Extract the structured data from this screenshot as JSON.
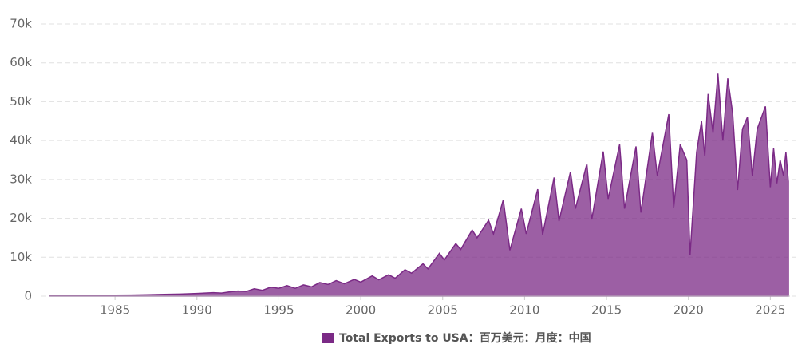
{
  "chart_data": {
    "type": "area",
    "series": [
      {
        "name": "Total Exports to USA：百万美元：月度：中国",
        "color": "#7b2a86",
        "x": [
          1981.0,
          1982.0,
          1983.0,
          1984.0,
          1985.0,
          1986.0,
          1987.0,
          1988.0,
          1989.0,
          1990.0,
          1991.0,
          1991.5,
          1992.0,
          1992.5,
          1993.0,
          1993.5,
          1994.0,
          1994.5,
          1995.0,
          1995.5,
          1996.0,
          1996.5,
          1997.0,
          1997.5,
          1998.0,
          1998.5,
          1999.0,
          1999.6,
          2000.0,
          2000.7,
          2001.1,
          2001.7,
          2002.1,
          2002.7,
          2003.1,
          2003.8,
          2004.1,
          2004.8,
          2005.1,
          2005.8,
          2006.1,
          2006.8,
          2007.1,
          2007.8,
          2008.1,
          2008.7,
          2009.1,
          2009.8,
          2010.1,
          2010.8,
          2011.1,
          2011.8,
          2012.1,
          2012.8,
          2013.1,
          2013.8,
          2014.1,
          2014.8,
          2015.1,
          2015.8,
          2016.1,
          2016.8,
          2017.1,
          2017.8,
          2018.1,
          2018.8,
          2019.1,
          2019.5,
          2019.9,
          2020.1,
          2020.5,
          2020.8,
          2021.0,
          2021.2,
          2021.5,
          2021.8,
          2022.1,
          2022.4,
          2022.7,
          2023.0,
          2023.3,
          2023.6,
          2023.9,
          2024.2,
          2024.7,
          2025.0,
          2025.2,
          2025.4,
          2025.6,
          2025.8,
          2025.95,
          2026.1
        ],
        "values": [
          100,
          150,
          130,
          200,
          250,
          280,
          350,
          450,
          550,
          700,
          900,
          800,
          1100,
          1300,
          1200,
          1900,
          1500,
          2300,
          2000,
          2700,
          2000,
          2900,
          2400,
          3500,
          3000,
          4000,
          3200,
          4300,
          3600,
          5200,
          4200,
          5500,
          4600,
          6800,
          5900,
          8300,
          7000,
          11000,
          9300,
          13500,
          12000,
          17000,
          15000,
          19500,
          16000,
          24800,
          11800,
          22500,
          16000,
          27500,
          15800,
          30500,
          19300,
          32000,
          22500,
          34000,
          19700,
          37200,
          25000,
          39000,
          22500,
          38500,
          21500,
          42000,
          31000,
          46800,
          22800,
          39000,
          35000,
          10500,
          37000,
          45000,
          36000,
          52000,
          42000,
          57200,
          40000,
          56000,
          47000,
          27300,
          43000,
          46000,
          31000,
          43000,
          48800,
          28000,
          38000,
          29000,
          35000,
          31000,
          37000,
          29500
        ]
      }
    ],
    "xlim": [
      1981,
      2026.2
    ],
    "xticks": [
      1985,
      1990,
      1995,
      2000,
      2005,
      2010,
      2015,
      2020,
      2025
    ],
    "ylim": [
      0,
      70000
    ],
    "yticks": [
      0,
      {
        "value": 10000,
        "label": "10k"
      },
      {
        "value": 20000,
        "label": "20k"
      },
      {
        "value": 30000,
        "label": "30k"
      },
      {
        "value": 40000,
        "label": "40k"
      },
      {
        "value": 50000,
        "label": "50k"
      },
      {
        "value": 60000,
        "label": "60k"
      },
      {
        "value": 70000,
        "label": "70k"
      }
    ],
    "grid": true
  }
}
